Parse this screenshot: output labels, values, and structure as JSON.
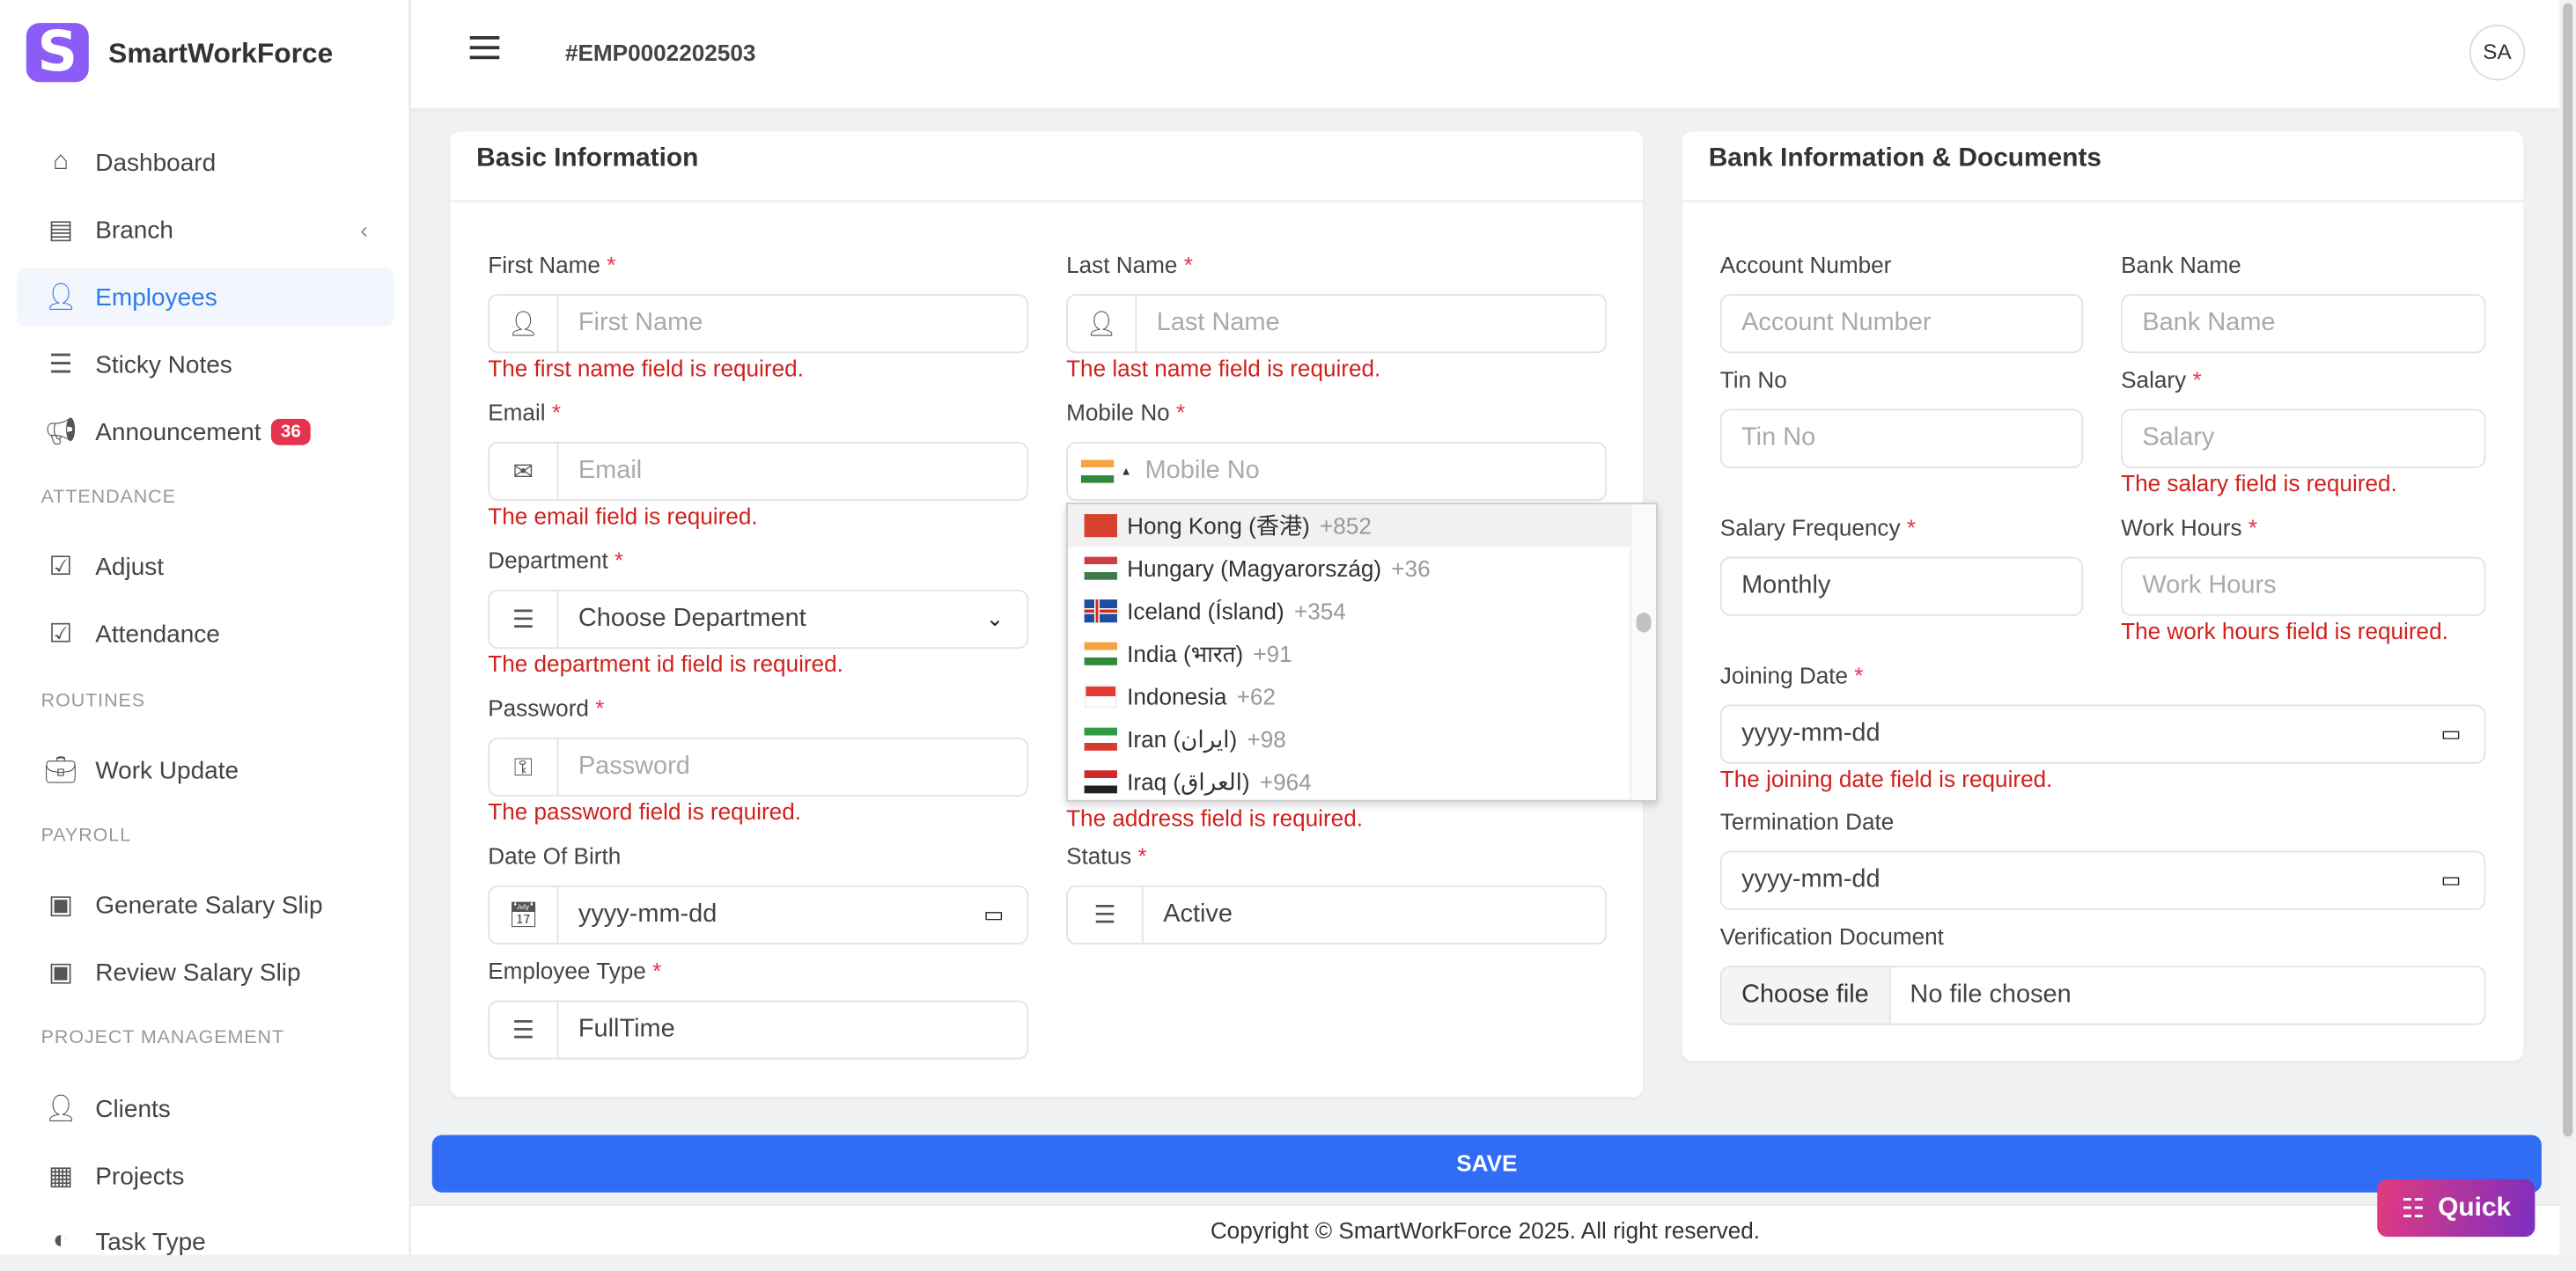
{
  "app": {
    "name": "SmartWorkForce",
    "logo_letter": "S"
  },
  "header": {
    "employee_id": "#EMP0002202503",
    "avatar_initials": "SA"
  },
  "sidebar": {
    "items": [
      {
        "label": "Dashboard",
        "icon": "home-icon"
      },
      {
        "label": "Branch",
        "icon": "layers-icon",
        "has_chevron": true
      },
      {
        "label": "Employees",
        "icon": "user-icon",
        "active": true
      },
      {
        "label": "Sticky Notes",
        "icon": "lines-icon"
      },
      {
        "label": "Announcement",
        "icon": "megaphone-icon",
        "badge": "36"
      }
    ],
    "sections": [
      {
        "title": "ATTENDANCE",
        "items": [
          {
            "label": "Adjust",
            "icon": "checklist-icon"
          },
          {
            "label": "Attendance",
            "icon": "checklist-icon"
          }
        ]
      },
      {
        "title": "ROUTINES",
        "items": [
          {
            "label": "Work Update",
            "icon": "briefcase-icon"
          }
        ]
      },
      {
        "title": "PAYROLL",
        "items": [
          {
            "label": "Generate Salary Slip",
            "icon": "money-icon"
          },
          {
            "label": "Review Salary Slip",
            "icon": "money-icon"
          }
        ]
      },
      {
        "title": "PROJECT MANAGEMENT",
        "items": [
          {
            "label": "Clients",
            "icon": "user-icon"
          },
          {
            "label": "Projects",
            "icon": "grid-icon"
          },
          {
            "label": "Task Type",
            "icon": "circles-icon"
          }
        ]
      }
    ]
  },
  "basic": {
    "title": "Basic Information",
    "first_name": {
      "label": "First Name",
      "placeholder": "First Name",
      "error": "The first name field is required."
    },
    "last_name": {
      "label": "Last Name",
      "placeholder": "Last Name",
      "error": "The last name field is required."
    },
    "email": {
      "label": "Email",
      "placeholder": "Email",
      "error": "The email field is required."
    },
    "mobile": {
      "label": "Mobile No",
      "placeholder": "Mobile No"
    },
    "department": {
      "label": "Department",
      "value": "Choose Department",
      "error": "The department id field is required."
    },
    "password": {
      "label": "Password",
      "placeholder": "Password",
      "error": "The password field is required."
    },
    "address": {
      "error": "The address field is required."
    },
    "dob": {
      "label": "Date Of Birth",
      "placeholder": "yyyy-mm-dd"
    },
    "status": {
      "label": "Status",
      "value": "Active"
    },
    "employee_type": {
      "label": "Employee Type",
      "value": "FullTime"
    }
  },
  "country_dropdown": [
    {
      "name": "Hong Kong (香港)",
      "code": "+852",
      "flag": "hk",
      "highlighted": true
    },
    {
      "name": "Hungary (Magyarország)",
      "code": "+36",
      "flag": "hu"
    },
    {
      "name": "Iceland (Ísland)",
      "code": "+354",
      "flag": "is"
    },
    {
      "name": "India (भारत)",
      "code": "+91",
      "flag": "in"
    },
    {
      "name": "Indonesia",
      "code": "+62",
      "flag": "id"
    },
    {
      "name": "Iran (‫ایران‬‎)",
      "code": "+98",
      "flag": "ir"
    },
    {
      "name": "Iraq (‫العراق‬‎)",
      "code": "+964",
      "flag": "iq"
    }
  ],
  "bank": {
    "title": "Bank Information & Documents",
    "account_number": {
      "label": "Account Number",
      "placeholder": "Account Number"
    },
    "bank_name": {
      "label": "Bank Name",
      "placeholder": "Bank Name"
    },
    "tin": {
      "label": "Tin No",
      "placeholder": "Tin No"
    },
    "salary": {
      "label": "Salary",
      "placeholder": "Salary",
      "error": "The salary field is required."
    },
    "salary_frequency": {
      "label": "Salary Frequency",
      "value": "Monthly"
    },
    "work_hours": {
      "label": "Work Hours",
      "placeholder": "Work Hours",
      "error": "The work hours field is required."
    },
    "joining_date": {
      "label": "Joining Date",
      "placeholder": "yyyy-mm-dd",
      "error": "The joining date field is required."
    },
    "termination_date": {
      "label": "Termination Date",
      "placeholder": "yyyy-mm-dd"
    },
    "verification": {
      "label": "Verification Document",
      "button": "Choose file",
      "status": "No file chosen"
    }
  },
  "required_mark": "*",
  "save_label": "SAVE",
  "footer": "Copyright © SmartWorkForce 2025. All right reserved.",
  "quick_label": "Quick",
  "colors": {
    "accent": "#316cf4",
    "active_nav": "#2f7be8",
    "error": "#d0211c",
    "badge": "#e5334f",
    "logo": "#8b5cf6"
  }
}
